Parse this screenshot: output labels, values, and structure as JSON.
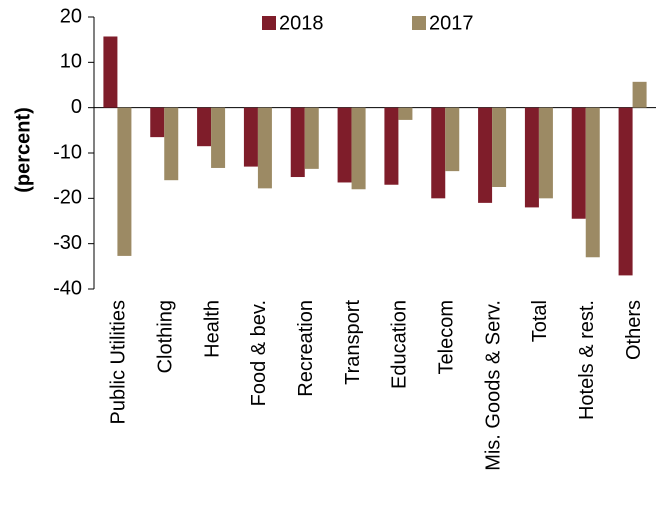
{
  "chart_data": {
    "type": "bar",
    "y_label": "(percent)",
    "categories": [
      "Public Utilities",
      "Clothing",
      "Health",
      "Food & bev.",
      "Recreation",
      "Transport",
      "Education",
      "Telecom",
      "Mis. Goods & Serv.",
      "Total",
      "Hotels & rest.",
      "Others"
    ],
    "series": [
      {
        "name": "2018",
        "color": "#7f1d2a",
        "values": [
          15.7,
          -6.5,
          -8.5,
          -13,
          -15.3,
          -16.5,
          -17,
          -20,
          -21,
          -22,
          -24.5,
          -37
        ]
      },
      {
        "name": "2017",
        "color": "#9c8a64",
        "values": [
          -32.7,
          -16,
          -13.3,
          -17.8,
          -13.5,
          -18,
          -2.7,
          -14,
          -17.5,
          -20,
          -33,
          5.7
        ]
      }
    ],
    "ylim": [
      -40,
      20
    ],
    "yticks": [
      -40,
      -30,
      -20,
      -10,
      0,
      10,
      20
    ],
    "legend": "top"
  }
}
